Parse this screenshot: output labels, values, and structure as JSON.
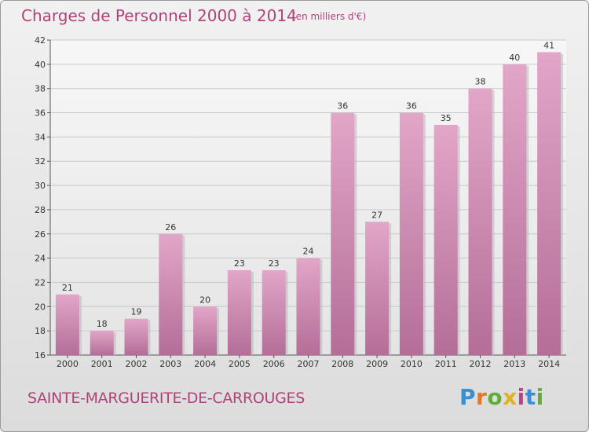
{
  "header": {
    "title": "Charges de Personnel 2000 à 2014",
    "subtitle": "(en milliers d'€)"
  },
  "footer": {
    "commune": "SAINTE-MARGUERITE-DE-CARROUGES",
    "brand_letters": [
      "P",
      "r",
      "o",
      "x",
      "i",
      "t",
      "i"
    ]
  },
  "colors": {
    "title": "#b0427a",
    "bar": "#d487b4",
    "brand": [
      "#3a8fd0",
      "#e2772a",
      "#5fae3a",
      "#e0b31c",
      "#c0418a",
      "#3a8fd0",
      "#5fae3a"
    ]
  },
  "chart_data": {
    "type": "bar",
    "categories": [
      "2000",
      "2001",
      "2002",
      "2003",
      "2004",
      "2005",
      "2006",
      "2007",
      "2008",
      "2009",
      "2010",
      "2011",
      "2012",
      "2013",
      "2014"
    ],
    "values": [
      21,
      18,
      19,
      26,
      20,
      23,
      23,
      24,
      36,
      27,
      36,
      35,
      38,
      40,
      41
    ],
    "title": "Charges de Personnel 2000 à 2014",
    "ylim": [
      16,
      42
    ],
    "yticks": [
      16,
      18,
      20,
      22,
      24,
      26,
      28,
      30,
      32,
      34,
      36,
      38,
      40,
      42
    ],
    "grid": true
  }
}
